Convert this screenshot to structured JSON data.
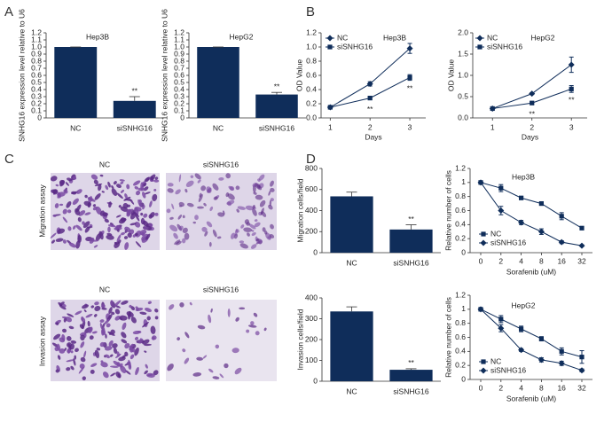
{
  "panel_labels": [
    "A",
    "B",
    "C",
    "D"
  ],
  "images": {
    "rows": [
      {
        "label": "Migration assay",
        "columns": [
          "NC",
          "siSNHG16"
        ]
      },
      {
        "label": "Invasion assay",
        "columns": [
          "NC",
          "siSNHG16"
        ]
      }
    ]
  },
  "chart_data": [
    {
      "type": "bar",
      "title": "Hep3B",
      "y_label": "SNHG16 expression level relative to U6",
      "categories": [
        "NC",
        "siSNHG16"
      ],
      "values": [
        1.0,
        0.24
      ],
      "errors": [
        0,
        0.06
      ],
      "annotations": [
        null,
        "**"
      ],
      "color": "#0f2d5a",
      "ylim": [
        0,
        1.2
      ],
      "yticks": [
        0,
        0.1,
        0.2,
        0.3,
        0.4,
        0.5,
        0.6,
        0.7,
        0.8,
        0.9,
        {
          "value": 1,
          "label": "1.0"
        },
        1.1,
        1.2
      ]
    },
    {
      "type": "bar",
      "title": "HepG2",
      "y_label": "SNHG16 expression level relative to U6",
      "categories": [
        "NC",
        "siSNHG16"
      ],
      "values": [
        1.0,
        0.33
      ],
      "errors": [
        0,
        0.03
      ],
      "annotations": [
        null,
        "**"
      ],
      "color": "#0f2d5a",
      "ylim": [
        0,
        1.2
      ],
      "yticks": [
        0,
        0.1,
        0.2,
        0.3,
        0.4,
        0.5,
        0.6,
        0.7,
        0.8,
        0.9,
        {
          "value": 1,
          "label": "1.0"
        },
        1.1,
        1.2
      ]
    },
    {
      "type": "line",
      "title": "Hep3B",
      "y_label": "OD Value",
      "x_label": "Days",
      "x": [
        1,
        2,
        3
      ],
      "xlim": [
        0.77,
        3.4
      ],
      "xticks": [
        1,
        2,
        3
      ],
      "ylim": [
        0,
        1.2
      ],
      "yticks": [
        {
          "value": 0,
          "label": "0.0"
        },
        0.2,
        0.4,
        0.6,
        0.8,
        {
          "value": 1,
          "label": "1.0"
        },
        1.2
      ],
      "legend": "upper left",
      "series": [
        {
          "name": "NC",
          "color": "#0f2d5a",
          "marker": "diamond",
          "values": [
            0.15,
            0.48,
            0.98
          ],
          "errors": [
            0.01,
            0.03,
            0.07
          ]
        },
        {
          "name": "siSNHG16",
          "color": "#0f2d5a",
          "marker": "square",
          "values": [
            0.15,
            0.28,
            0.57
          ],
          "errors": [
            0.01,
            0.02,
            0.04
          ],
          "annotations": [
            null,
            "**",
            "**"
          ]
        }
      ]
    },
    {
      "type": "line",
      "title": "HepG2",
      "y_label": "OD Value",
      "x_label": "Days",
      "x": [
        1,
        2,
        3
      ],
      "xlim": [
        0.5,
        3.4
      ],
      "xticks": [
        1,
        2,
        3
      ],
      "ylim": [
        0,
        2
      ],
      "yticks": [
        {
          "value": 0,
          "label": "0.0"
        },
        0.5,
        {
          "value": 1,
          "label": "1.0"
        },
        1.5,
        {
          "value": 2,
          "label": "2.0"
        }
      ],
      "legend": "upper left",
      "series": [
        {
          "name": "NC",
          "color": "#0f2d5a",
          "marker": "diamond",
          "values": [
            0.22,
            0.57,
            1.25
          ],
          "errors": [
            0.01,
            0.02,
            0.18
          ]
        },
        {
          "name": "siSNHG16",
          "color": "#0f2d5a",
          "marker": "square",
          "values": [
            0.22,
            0.35,
            0.68
          ],
          "errors": [
            0.01,
            0.02,
            0.08
          ],
          "annotations": [
            null,
            "**",
            "**"
          ]
        }
      ]
    },
    {
      "type": "bar",
      "y_label": "Migration cells/field",
      "categories": [
        "NC",
        "siSNHG16"
      ],
      "values": [
        535,
        220
      ],
      "errors": [
        40,
        45
      ],
      "annotations": [
        null,
        "**"
      ],
      "color": "#0f2d5a",
      "ylim": [
        0,
        800
      ],
      "yticks": [
        0,
        200,
        400,
        600,
        800
      ]
    },
    {
      "type": "bar",
      "y_label": "Invasion cells/field",
      "categories": [
        "NC",
        "siSNHG16"
      ],
      "values": [
        335,
        55
      ],
      "errors": [
        22,
        5
      ],
      "annotations": [
        null,
        "**"
      ],
      "color": "#0f2d5a",
      "ylim": [
        0,
        400
      ],
      "yticks": [
        0,
        100,
        200,
        300,
        400
      ]
    },
    {
      "type": "line",
      "title": "Hep3B",
      "y_label": "Relative number of cells",
      "x_label": "Sorafenib (uM)",
      "categories": [
        "0",
        "2",
        "4",
        "8",
        "16",
        "32"
      ],
      "ylim": [
        0,
        1.2
      ],
      "yticks": [
        0,
        0.2,
        0.4,
        0.6,
        0.8,
        1,
        1.2
      ],
      "legend": "lower left",
      "series": [
        {
          "name": "NC",
          "color": "#0f2d5a",
          "marker": "square",
          "values": [
            1.0,
            0.92,
            0.78,
            0.7,
            0.52,
            0.35
          ],
          "errors": [
            0.01,
            0.05,
            0.02,
            0.02,
            0.05,
            0.02
          ]
        },
        {
          "name": "siSNHG16",
          "color": "#0f2d5a",
          "marker": "diamond",
          "values": [
            1.0,
            0.6,
            0.43,
            0.3,
            0.15,
            0.1
          ],
          "errors": [
            0.01,
            0.06,
            0.03,
            0.04,
            0.02,
            0.01
          ]
        }
      ]
    },
    {
      "type": "line",
      "title": "HepG2",
      "y_label": "Relative number of cells",
      "x_label": "Sorafenib (uM)",
      "categories": [
        "0",
        "2",
        "4",
        "8",
        "16",
        "32"
      ],
      "ylim": [
        0,
        1.2
      ],
      "yticks": [
        0,
        0.2,
        0.4,
        0.6,
        0.8,
        1,
        1.2
      ],
      "legend": "lower left",
      "series": [
        {
          "name": "NC",
          "color": "#0f2d5a",
          "marker": "square",
          "values": [
            1.0,
            0.86,
            0.72,
            0.58,
            0.4,
            0.32
          ],
          "errors": [
            0.01,
            0.05,
            0.04,
            0.03,
            0.05,
            0.09
          ]
        },
        {
          "name": "siSNHG16",
          "color": "#0f2d5a",
          "marker": "diamond",
          "values": [
            1.0,
            0.73,
            0.42,
            0.28,
            0.23,
            0.13
          ],
          "errors": [
            0.01,
            0.05,
            0.02,
            0.03,
            0.03,
            0.02
          ]
        }
      ]
    }
  ]
}
